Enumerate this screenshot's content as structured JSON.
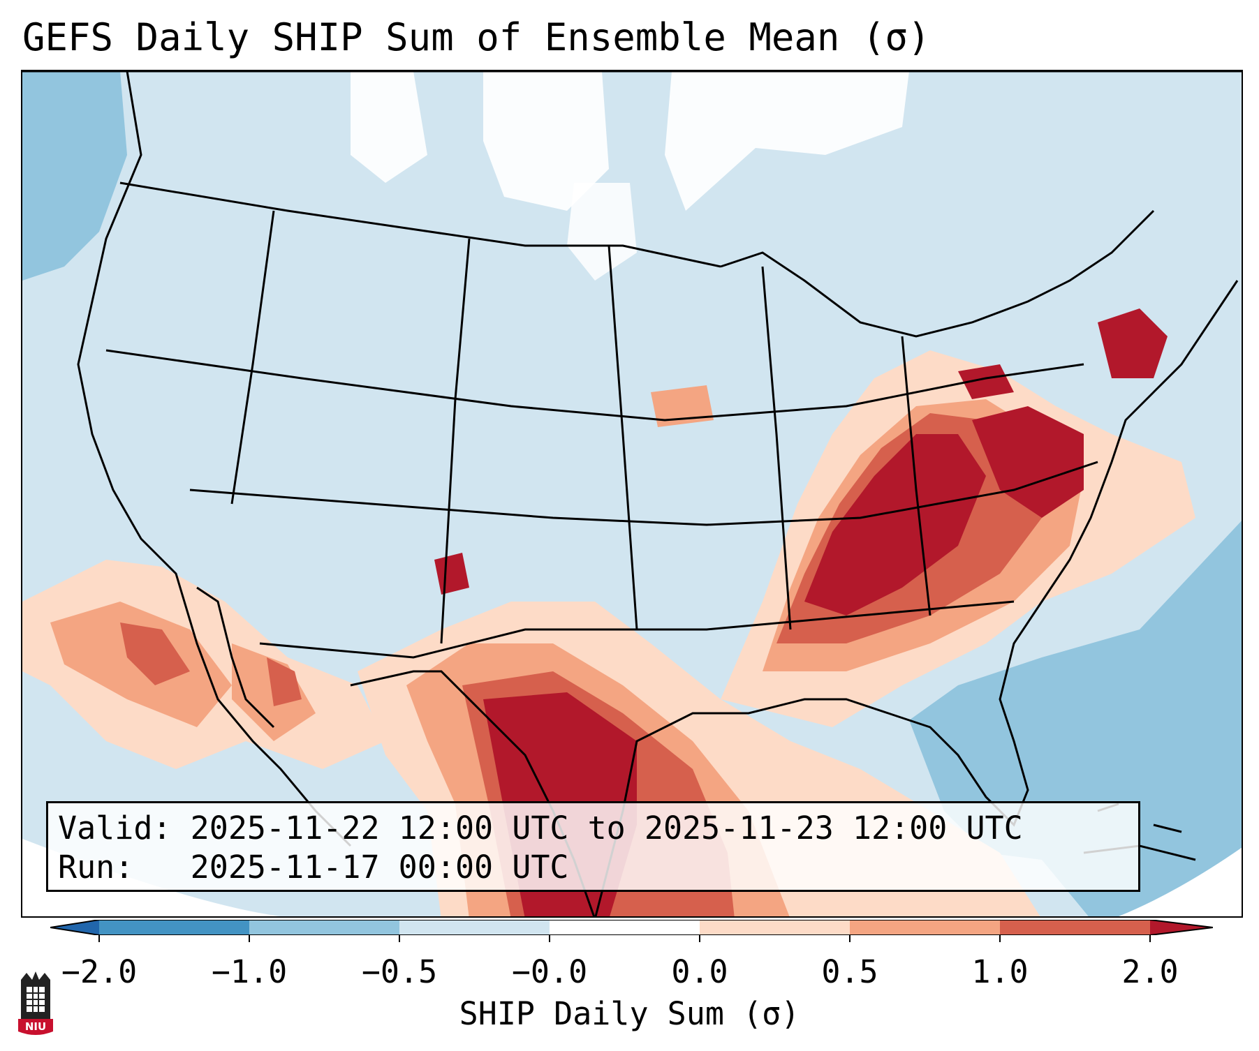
{
  "title": "GEFS Daily SHIP Sum of Ensemble Mean (σ)",
  "info": {
    "valid_label": "Valid:",
    "valid_value": "2025-11-22 12:00 UTC to 2025-11-23 12:00 UTC",
    "run_label": "Run:",
    "run_value": "2025-11-17 00:00 UTC"
  },
  "colorbar": {
    "label": "SHIP Daily Sum (σ)",
    "ticks": [
      "−2.0",
      "−1.0",
      "−0.5",
      "−0.0",
      "0.0",
      "0.5",
      "1.0",
      "2.0"
    ],
    "colors": [
      "#4393c3",
      "#92c5de",
      "#d1e5f0",
      "#ffffff",
      "#fddbc7",
      "#f4a582",
      "#d6604d",
      "#b2182b"
    ]
  },
  "logo": {
    "text": "NIU"
  }
}
